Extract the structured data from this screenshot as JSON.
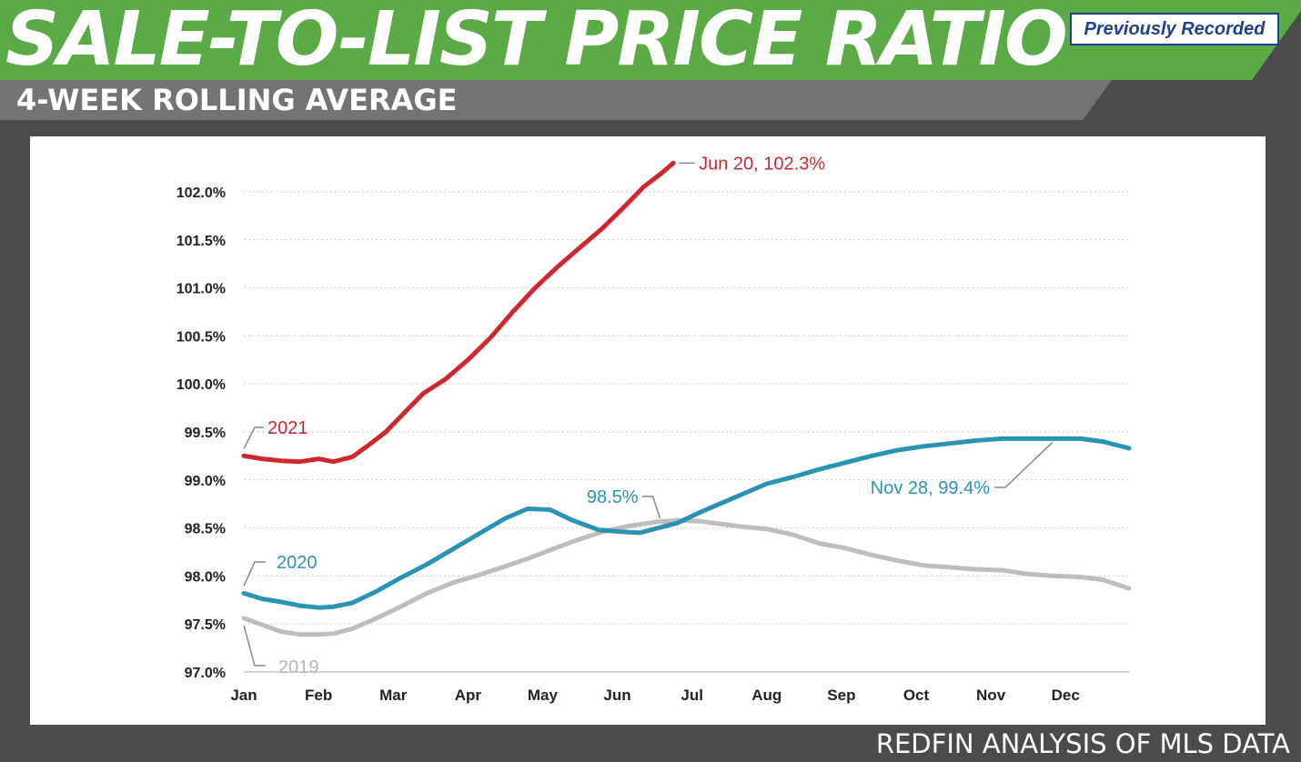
{
  "header": {
    "title": "SALE-TO-LIST PRICE RATIO",
    "subtitle": "4-WEEK ROLLING AVERAGE",
    "badge": "Previously Recorded",
    "source": "REDFIN ANALYSIS OF MLS DATA"
  },
  "colors": {
    "banner_green": "#5aaa46",
    "subbar_gray": "#737373",
    "series_2021": "#d0262d",
    "series_2020": "#2a93b4",
    "series_2019": "#bdbdbd",
    "grid": "#c8c8c8"
  },
  "chart_data": {
    "type": "line",
    "ylim": [
      97.0,
      102.3
    ],
    "y_ticks": [
      97.0,
      97.5,
      98.0,
      98.5,
      99.0,
      99.5,
      100.0,
      100.5,
      101.0,
      101.5,
      102.0
    ],
    "y_tick_labels": [
      "97.0%",
      "97.5%",
      "98.0%",
      "98.5%",
      "99.0%",
      "99.5%",
      "100.0%",
      "100.5%",
      "101.0%",
      "101.5%",
      "102.0%"
    ],
    "x_tick_labels": [
      "Jan",
      "Feb",
      "Mar",
      "Apr",
      "May",
      "Jun",
      "Jul",
      "Aug",
      "Sep",
      "Oct",
      "Nov",
      "Dec"
    ],
    "xlim": [
      0,
      11.85
    ],
    "grid": "horizontal dotted",
    "series": [
      {
        "name": "2021",
        "color": "#d0262d",
        "x": [
          0,
          0.25,
          0.5,
          0.75,
          1.0,
          1.2,
          1.45,
          1.65,
          1.9,
          2.15,
          2.4,
          2.7,
          3.0,
          3.3,
          3.6,
          3.9,
          4.2,
          4.5,
          4.8,
          5.1,
          5.35,
          5.6,
          5.75
        ],
        "values": [
          99.25,
          99.22,
          99.2,
          99.19,
          99.22,
          99.19,
          99.24,
          99.35,
          99.5,
          99.7,
          99.9,
          100.05,
          100.25,
          100.48,
          100.75,
          101.0,
          101.22,
          101.42,
          101.62,
          101.85,
          102.05,
          102.2,
          102.3
        ]
      },
      {
        "name": "2020",
        "color": "#2a93b4",
        "x": [
          0,
          0.25,
          0.5,
          0.75,
          1.0,
          1.2,
          1.45,
          1.75,
          2.1,
          2.45,
          2.8,
          3.15,
          3.5,
          3.8,
          4.1,
          4.4,
          4.75,
          5.05,
          5.3,
          5.55,
          5.8,
          6.1,
          6.4,
          6.7,
          7.0,
          7.35,
          7.7,
          8.05,
          8.4,
          8.75,
          9.1,
          9.45,
          9.8,
          10.15,
          10.5,
          10.85,
          11.2,
          11.5,
          11.85
        ],
        "values": [
          97.82,
          97.76,
          97.73,
          97.69,
          97.67,
          97.68,
          97.72,
          97.83,
          97.98,
          98.12,
          98.28,
          98.44,
          98.6,
          98.7,
          98.69,
          98.58,
          98.48,
          98.46,
          98.45,
          98.5,
          98.55,
          98.66,
          98.76,
          98.86,
          98.96,
          99.03,
          99.11,
          99.18,
          99.25,
          99.31,
          99.35,
          99.38,
          99.41,
          99.43,
          99.43,
          99.43,
          99.43,
          99.4,
          99.33
        ]
      },
      {
        "name": "2019",
        "color": "#bdbdbd",
        "x": [
          0,
          0.25,
          0.5,
          0.75,
          1.0,
          1.2,
          1.45,
          1.75,
          2.1,
          2.45,
          2.8,
          3.15,
          3.5,
          3.8,
          4.1,
          4.45,
          4.8,
          5.15,
          5.5,
          5.8,
          6.1,
          6.4,
          6.7,
          7.0,
          7.35,
          7.7,
          8.05,
          8.4,
          8.75,
          9.1,
          9.45,
          9.8,
          10.15,
          10.5,
          10.85,
          11.2,
          11.5,
          11.85
        ],
        "values": [
          97.56,
          97.49,
          97.42,
          97.39,
          97.39,
          97.4,
          97.45,
          97.55,
          97.68,
          97.82,
          97.93,
          98.01,
          98.1,
          98.18,
          98.27,
          98.37,
          98.46,
          98.52,
          98.56,
          98.58,
          98.57,
          98.54,
          98.51,
          98.49,
          98.43,
          98.34,
          98.29,
          98.22,
          98.16,
          98.11,
          98.09,
          98.07,
          98.06,
          98.02,
          98.0,
          97.99,
          97.96,
          97.87
        ]
      }
    ],
    "annotations": [
      {
        "text": "Jun 20, 102.3%",
        "series": "2021"
      },
      {
        "text": "98.5%",
        "series": "2020"
      },
      {
        "text": "Nov 28, 99.4%",
        "series": "2020"
      }
    ]
  }
}
